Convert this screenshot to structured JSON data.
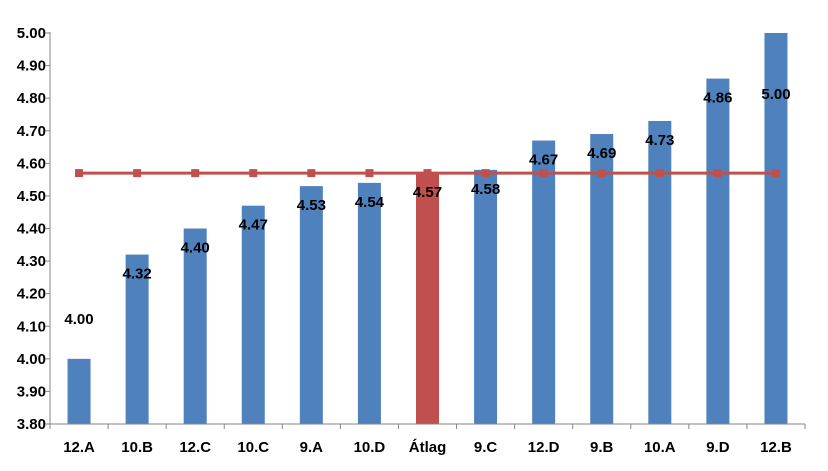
{
  "chart_data": {
    "type": "bar",
    "categories": [
      "12.A",
      "10.B",
      "12.C",
      "10.C",
      "9.A",
      "10.D",
      "Átlag",
      "9.C",
      "12.D",
      "9.B",
      "10.A",
      "9.D",
      "12.B"
    ],
    "values": [
      4.0,
      4.32,
      4.4,
      4.47,
      4.53,
      4.54,
      4.57,
      4.58,
      4.67,
      4.69,
      4.73,
      4.86,
      5.0
    ],
    "value_labels": [
      "4.00",
      "4.32",
      "4.40",
      "4.47",
      "4.53",
      "4.54",
      "4.57",
      "4.58",
      "4.67",
      "4.69",
      "4.73",
      "4.86",
      "5.00"
    ],
    "highlight_category": "Átlag",
    "average_line": {
      "value": 4.57,
      "marker": "square"
    },
    "ylim": [
      3.8,
      5.0
    ],
    "yticks": [
      "3.80",
      "3.90",
      "4.00",
      "4.10",
      "4.20",
      "4.30",
      "4.40",
      "4.50",
      "4.60",
      "4.70",
      "4.80",
      "4.90",
      "5.00"
    ],
    "grid": false,
    "legend": "none",
    "colors": {
      "bar": "#4F81BD",
      "highlight_bar": "#C0504D",
      "line": "#C0504D",
      "axis": "#868686"
    }
  }
}
